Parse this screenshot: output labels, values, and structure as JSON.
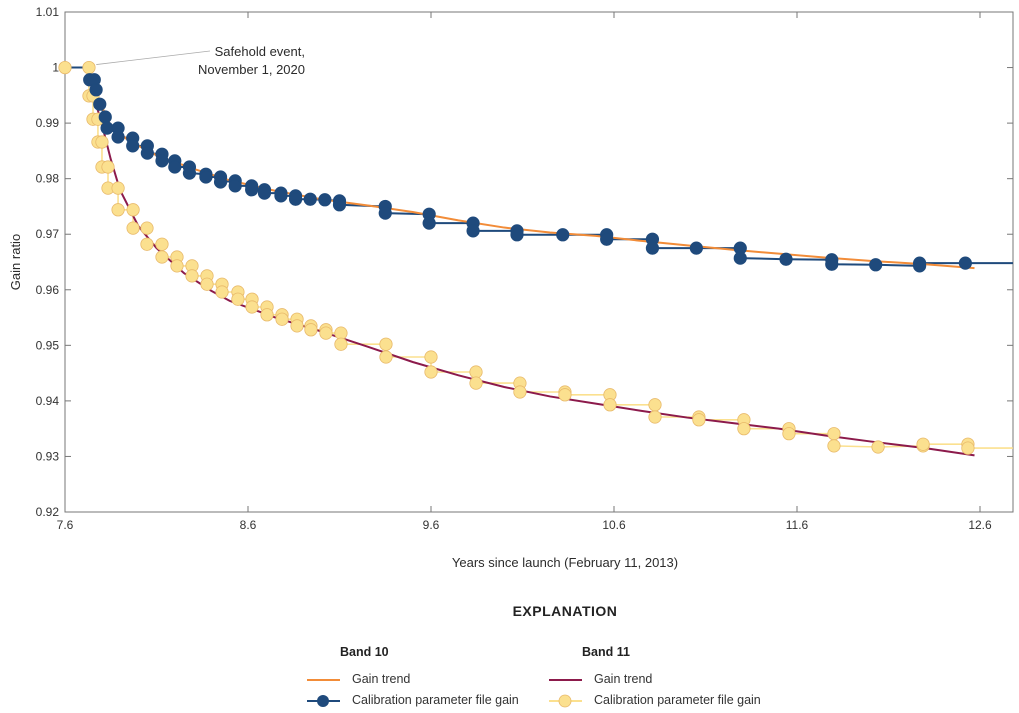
{
  "chart_data": {
    "type": "line",
    "xlabel": "Years since launch (February 11, 2013)",
    "ylabel": "Gain ratio",
    "xlim": [
      7.6,
      12.78
    ],
    "ylim": [
      0.92,
      1.01
    ],
    "x_ticks": [
      "7.6",
      "8.6",
      "9.6",
      "10.6",
      "11.6",
      "12.6"
    ],
    "y_ticks": [
      "0.92",
      "0.93",
      "0.94",
      "0.95",
      "0.96",
      "0.97",
      "0.98",
      "0.99",
      "1",
      "1.01"
    ],
    "grid": false,
    "annotation": {
      "text_line1": "Safehold event,",
      "text_line2": "November 1, 2020",
      "x": 7.76,
      "y": 1.0
    },
    "legend": {
      "title": "EXPLANATION",
      "placement": "bottom",
      "groups": [
        {
          "title": "Band 10",
          "trend_label": "Gain trend",
          "cpf_label": "Calibration parameter file gain"
        },
        {
          "title": "Band 11",
          "trend_label": "Gain trend",
          "cpf_label": "Calibration parameter file gain"
        }
      ]
    },
    "colors": {
      "band10_trend": "#f28c38",
      "band10_cpf": "#1f4a7c",
      "band11_trend": "#8c1a4b",
      "band11_cpf": "#fbe08f",
      "band11_cpf_edge": "#e8b96a",
      "axis": "#777777"
    },
    "series": [
      {
        "name": "Band 10 Gain trend",
        "kind": "trend",
        "points": [
          [
            7.73,
            0.998
          ],
          [
            7.78,
            0.9945
          ],
          [
            7.85,
            0.9895
          ],
          [
            7.95,
            0.9868
          ],
          [
            8.1,
            0.9842
          ],
          [
            8.3,
            0.9818
          ],
          [
            8.5,
            0.9797
          ],
          [
            8.75,
            0.9778
          ],
          [
            9.0,
            0.9763
          ],
          [
            9.25,
            0.9752
          ],
          [
            9.5,
            0.974
          ],
          [
            9.75,
            0.9725
          ],
          [
            10.0,
            0.9712
          ],
          [
            10.25,
            0.9703
          ],
          [
            10.5,
            0.9697
          ],
          [
            10.75,
            0.9688
          ],
          [
            11.0,
            0.968
          ],
          [
            11.25,
            0.9672
          ],
          [
            11.5,
            0.9665
          ],
          [
            11.75,
            0.9658
          ],
          [
            12.0,
            0.9652
          ],
          [
            12.3,
            0.9646
          ],
          [
            12.57,
            0.9639
          ]
        ]
      },
      {
        "name": "Band 10 Calibration parameter file gain",
        "kind": "cpf",
        "points": [
          [
            7.6,
            1.0,
            0
          ],
          [
            7.735,
            1.0,
            0
          ],
          [
            7.735,
            0.9978,
            1
          ],
          [
            7.76,
            0.9978,
            1
          ],
          [
            7.77,
            0.996,
            1
          ],
          [
            7.79,
            0.9934,
            1
          ],
          [
            7.82,
            0.9911,
            1
          ],
          [
            7.83,
            0.9891,
            1
          ],
          [
            7.89,
            0.9891,
            1
          ],
          [
            7.89,
            0.9875,
            1
          ],
          [
            7.97,
            0.9873,
            1
          ],
          [
            7.97,
            0.9859,
            1
          ],
          [
            8.05,
            0.9859,
            1
          ],
          [
            8.05,
            0.9846,
            1
          ],
          [
            8.13,
            0.9844,
            1
          ],
          [
            8.13,
            0.9832,
            1
          ],
          [
            8.2,
            0.9832,
            1
          ],
          [
            8.2,
            0.9821,
            1
          ],
          [
            8.28,
            0.9821,
            1
          ],
          [
            8.28,
            0.981,
            1
          ],
          [
            8.37,
            0.9808,
            1
          ],
          [
            8.37,
            0.9803,
            1
          ],
          [
            8.45,
            0.9803,
            1
          ],
          [
            8.45,
            0.9794,
            1
          ],
          [
            8.53,
            0.9796,
            1
          ],
          [
            8.53,
            0.9787,
            1
          ],
          [
            8.62,
            0.9787,
            1
          ],
          [
            8.62,
            0.978,
            1
          ],
          [
            8.69,
            0.978,
            1
          ],
          [
            8.69,
            0.9774,
            1
          ],
          [
            8.78,
            0.9774,
            1
          ],
          [
            8.78,
            0.9769,
            1
          ],
          [
            8.86,
            0.9769,
            1
          ],
          [
            8.86,
            0.9763,
            1
          ],
          [
            8.94,
            0.9763,
            1
          ],
          [
            9.02,
            0.9762,
            1
          ],
          [
            9.1,
            0.976,
            1
          ],
          [
            9.1,
            0.9753,
            1
          ],
          [
            9.35,
            0.975,
            1
          ],
          [
            9.35,
            0.9738,
            1
          ],
          [
            9.59,
            0.9736,
            1
          ],
          [
            9.59,
            0.972,
            1
          ],
          [
            9.83,
            0.972,
            1
          ],
          [
            9.83,
            0.9706,
            1
          ],
          [
            10.07,
            0.9706,
            1
          ],
          [
            10.07,
            0.9699,
            1
          ],
          [
            10.32,
            0.9699,
            1
          ],
          [
            10.56,
            0.9699,
            1
          ],
          [
            10.56,
            0.9691,
            1
          ],
          [
            10.81,
            0.9691,
            1
          ],
          [
            10.81,
            0.9675,
            1
          ],
          [
            11.05,
            0.9675,
            1
          ],
          [
            11.29,
            0.9675,
            1
          ],
          [
            11.29,
            0.9657,
            1
          ],
          [
            11.54,
            0.9655,
            1
          ],
          [
            11.79,
            0.9654,
            1
          ],
          [
            11.79,
            0.9646,
            1
          ],
          [
            12.03,
            0.9645,
            1
          ],
          [
            12.27,
            0.9643,
            1
          ],
          [
            12.27,
            0.9648,
            1
          ],
          [
            12.52,
            0.9648,
            1
          ],
          [
            12.78,
            0.9648,
            0
          ]
        ]
      },
      {
        "name": "Band 11 Gain trend",
        "kind": "trend",
        "points": [
          [
            7.73,
            0.9985
          ],
          [
            7.76,
            0.9945
          ],
          [
            7.8,
            0.99
          ],
          [
            7.85,
            0.9835
          ],
          [
            7.9,
            0.978
          ],
          [
            8.0,
            0.9715
          ],
          [
            8.1,
            0.9675
          ],
          [
            8.25,
            0.963
          ],
          [
            8.4,
            0.9598
          ],
          [
            8.5,
            0.958
          ],
          [
            8.75,
            0.955
          ],
          [
            9.0,
            0.9525
          ],
          [
            9.25,
            0.9498
          ],
          [
            9.5,
            0.947
          ],
          [
            9.75,
            0.9446
          ],
          [
            10.0,
            0.9425
          ],
          [
            10.25,
            0.9408
          ],
          [
            10.5,
            0.9395
          ],
          [
            10.75,
            0.9382
          ],
          [
            11.0,
            0.937
          ],
          [
            11.25,
            0.936
          ],
          [
            11.5,
            0.935
          ],
          [
            11.75,
            0.9338
          ],
          [
            12.0,
            0.9327
          ],
          [
            12.3,
            0.9315
          ],
          [
            12.57,
            0.9302
          ]
        ]
      },
      {
        "name": "Band 11 Calibration parameter file gain",
        "kind": "cpf",
        "points": [
          [
            7.6,
            1.0,
            1
          ],
          [
            7.731,
            1.0,
            1
          ],
          [
            7.731,
            0.9949,
            1
          ],
          [
            7.753,
            0.9949,
            1
          ],
          [
            7.753,
            0.9907,
            1
          ],
          [
            7.78,
            0.9907,
            1
          ],
          [
            7.78,
            0.9866,
            1
          ],
          [
            7.802,
            0.9866,
            1
          ],
          [
            7.802,
            0.9821,
            1
          ],
          [
            7.835,
            0.9821,
            1
          ],
          [
            7.835,
            0.9783,
            1
          ],
          [
            7.89,
            0.9783,
            1
          ],
          [
            7.89,
            0.9744,
            1
          ],
          [
            7.972,
            0.9744,
            1
          ],
          [
            7.972,
            0.9711,
            1
          ],
          [
            8.048,
            0.9711,
            1
          ],
          [
            8.048,
            0.9682,
            1
          ],
          [
            8.13,
            0.9682,
            1
          ],
          [
            8.13,
            0.9659,
            1
          ],
          [
            8.212,
            0.9659,
            1
          ],
          [
            8.212,
            0.9643,
            1
          ],
          [
            8.294,
            0.9643,
            1
          ],
          [
            8.294,
            0.9625,
            1
          ],
          [
            8.376,
            0.9625,
            1
          ],
          [
            8.376,
            0.961,
            1
          ],
          [
            8.458,
            0.961,
            1
          ],
          [
            8.458,
            0.9596,
            1
          ],
          [
            8.545,
            0.9596,
            1
          ],
          [
            8.545,
            0.9583,
            1
          ],
          [
            8.622,
            0.9583,
            1
          ],
          [
            8.622,
            0.9569,
            1
          ],
          [
            8.704,
            0.9569,
            1
          ],
          [
            8.704,
            0.9555,
            1
          ],
          [
            8.786,
            0.9555,
            1
          ],
          [
            8.786,
            0.9547,
            1
          ],
          [
            8.868,
            0.9547,
            1
          ],
          [
            8.868,
            0.9535,
            1
          ],
          [
            8.944,
            0.9535,
            1
          ],
          [
            8.944,
            0.9528,
            1
          ],
          [
            9.026,
            0.9528,
            1
          ],
          [
            9.026,
            0.9522,
            1
          ],
          [
            9.108,
            0.9522,
            1
          ],
          [
            9.108,
            0.9502,
            1
          ],
          [
            9.354,
            0.9502,
            1
          ],
          [
            9.354,
            0.9479,
            1
          ],
          [
            9.6,
            0.9479,
            1
          ],
          [
            9.6,
            0.9452,
            1
          ],
          [
            9.846,
            0.9452,
            1
          ],
          [
            9.846,
            0.9432,
            1
          ],
          [
            10.086,
            0.9432,
            1
          ],
          [
            10.086,
            0.9416,
            1
          ],
          [
            10.332,
            0.9416,
            1
          ],
          [
            10.332,
            0.9411,
            1
          ],
          [
            10.578,
            0.9411,
            1
          ],
          [
            10.578,
            0.9393,
            1
          ],
          [
            10.824,
            0.9393,
            1
          ],
          [
            10.824,
            0.9371,
            1
          ],
          [
            11.064,
            0.9371,
            1
          ],
          [
            11.064,
            0.9366,
            1
          ],
          [
            11.31,
            0.9366,
            1
          ],
          [
            11.31,
            0.935,
            1
          ],
          [
            11.556,
            0.935,
            1
          ],
          [
            11.556,
            0.9341,
            1
          ],
          [
            11.802,
            0.9341,
            1
          ],
          [
            11.802,
            0.9319,
            1
          ],
          [
            12.043,
            0.9317,
            1
          ],
          [
            12.289,
            0.9319,
            1
          ],
          [
            12.289,
            0.9322,
            1
          ],
          [
            12.534,
            0.9322,
            1
          ],
          [
            12.534,
            0.9315,
            1
          ],
          [
            12.78,
            0.9315,
            0
          ]
        ]
      }
    ]
  }
}
